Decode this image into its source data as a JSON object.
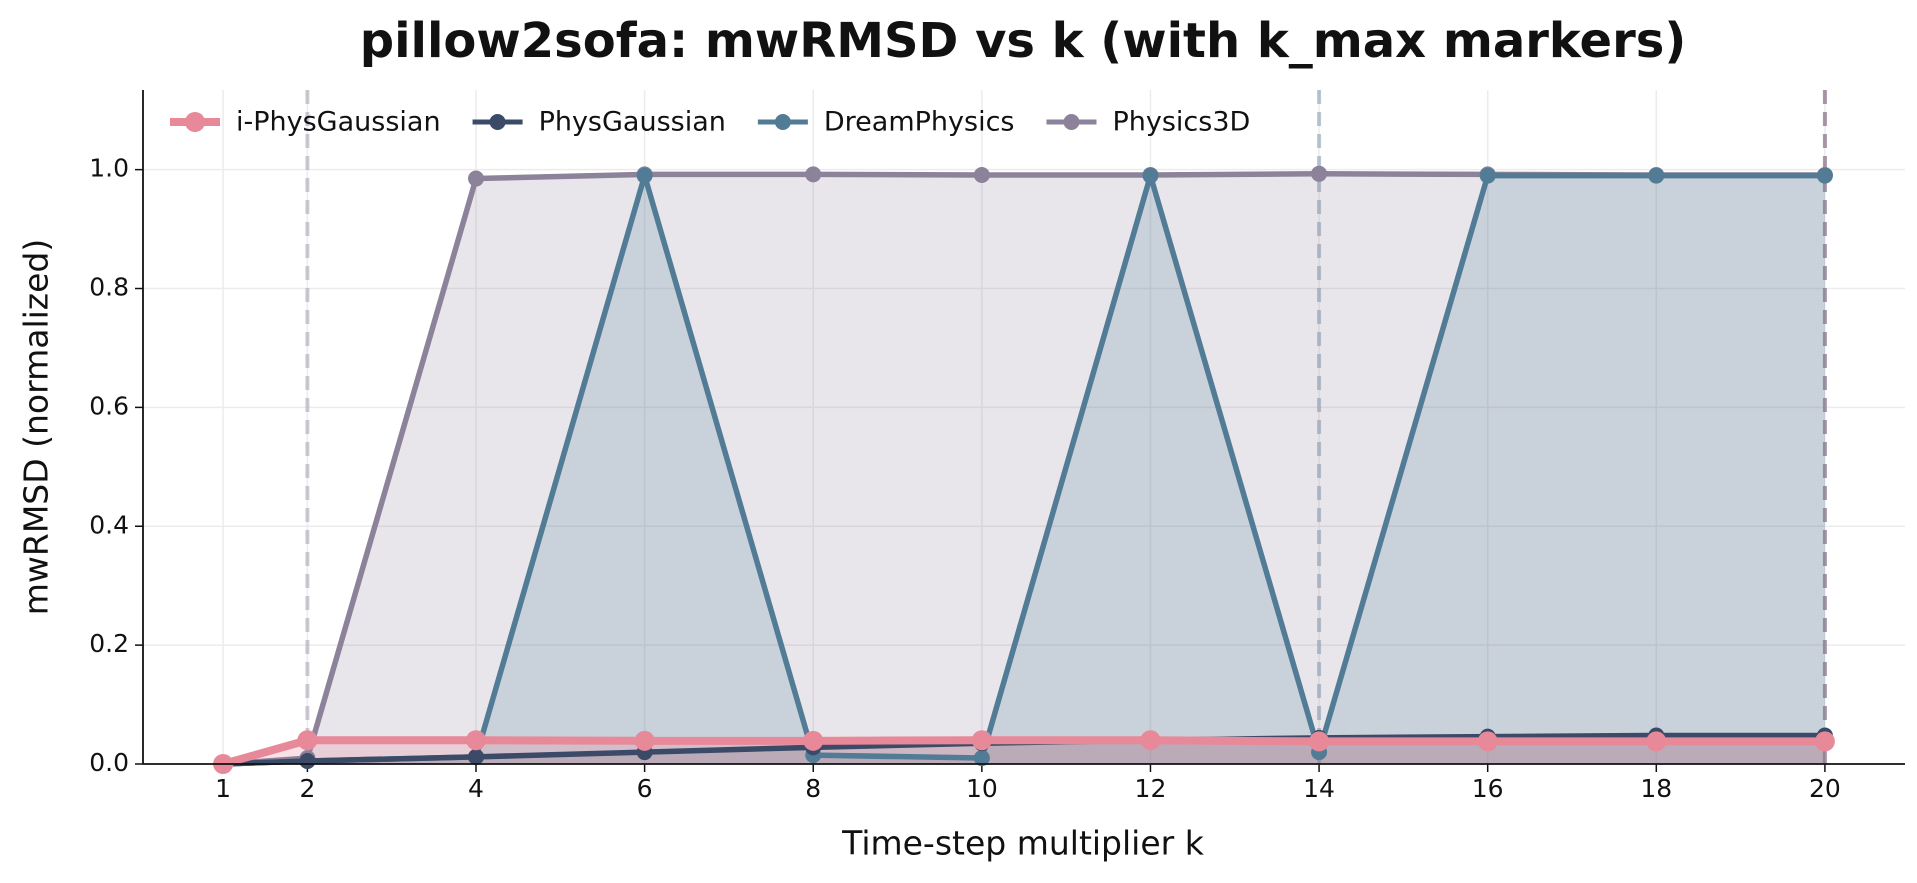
{
  "chart_data": {
    "type": "line",
    "title": "pillow2sofa: mwRMSD vs k (with k_max markers)",
    "x_label": "Time-step multiplier  k",
    "y_label": "mwRMSD (normalized)",
    "x": [
      1,
      2,
      4,
      6,
      8,
      10,
      12,
      14,
      16,
      18,
      20
    ],
    "xlim": [
      0.05,
      20.95
    ],
    "xticks": [
      1,
      2,
      4,
      6,
      8,
      10,
      12,
      14,
      16,
      18,
      20
    ],
    "ylim": [
      0,
      1.134
    ],
    "yticks": [
      {
        "value": 0,
        "label": "0.0"
      },
      0.2,
      0.4,
      0.6,
      0.8,
      {
        "value": 1,
        "label": "1.0"
      }
    ],
    "grid": true,
    "legend": "upper-left",
    "series": [
      {
        "name": "i-PhysGaussian",
        "color": "#e8899a",
        "k_max": 20,
        "values": [
          0,
          0.04,
          0.04,
          0.039,
          0.039,
          0.04,
          0.04,
          0.038,
          0.038,
          0.038,
          0.038
        ]
      },
      {
        "name": "PhysGaussian",
        "color": "#3b4a66",
        "k_max": 20,
        "values": [
          0,
          0.005,
          0.012,
          0.02,
          0.028,
          0.035,
          0.04,
          0.044,
          0.046,
          0.048,
          0.048
        ]
      },
      {
        "name": "DreamPhysics",
        "color": "#527b96",
        "k_max": 14,
        "values": [
          0,
          0.005,
          0.012,
          0.99,
          0.015,
          0.01,
          0.99,
          0.02,
          0.99,
          0.99,
          0.99
        ]
      },
      {
        "name": "Physics3D",
        "color": "#8c8299",
        "k_max": 2,
        "values": [
          0,
          0.01,
          0.985,
          0.992,
          0.992,
          0.991,
          0.991,
          0.993,
          0.992,
          0.991,
          0.991
        ]
      }
    ]
  }
}
